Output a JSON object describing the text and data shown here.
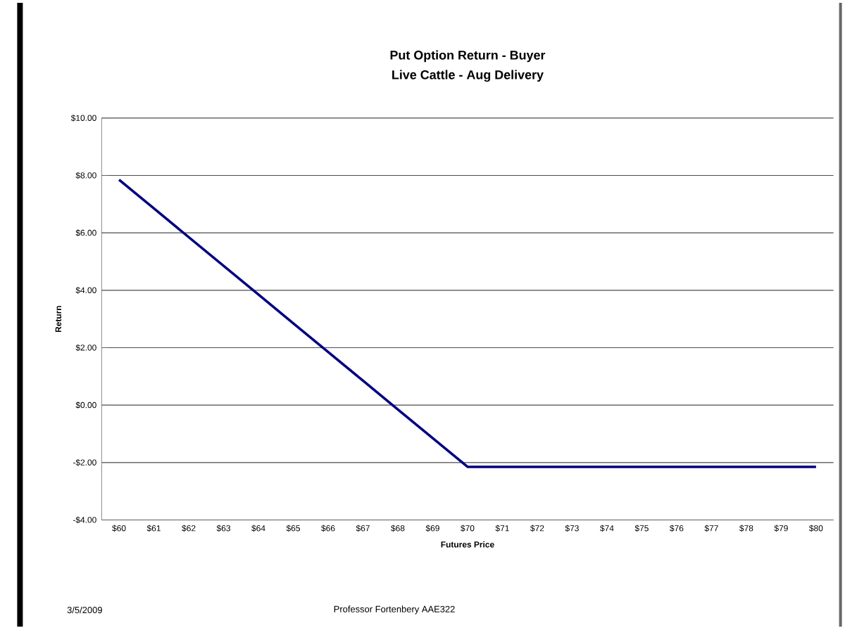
{
  "chart_data": {
    "type": "line",
    "title": "Put Option Return - Buyer",
    "subtitle": "Live Cattle - Aug Delivery",
    "xlabel": "Futures Price",
    "ylabel": "Return",
    "categories": [
      "$60",
      "$61",
      "$62",
      "$63",
      "$64",
      "$65",
      "$66",
      "$67",
      "$68",
      "$69",
      "$70",
      "$71",
      "$72",
      "$73",
      "$74",
      "$75",
      "$76",
      "$77",
      "$78",
      "$79",
      "$80"
    ],
    "series": [
      {
        "color": "#000080",
        "values": [
          7.85,
          6.85,
          5.85,
          4.85,
          3.85,
          2.85,
          1.85,
          0.85,
          -0.15,
          -1.15,
          -2.15,
          -2.15,
          -2.15,
          -2.15,
          -2.15,
          -2.15,
          -2.15,
          -2.15,
          -2.15,
          -2.15,
          -2.15
        ]
      }
    ],
    "ylim": [
      -4,
      10
    ],
    "yticks": [
      {
        "value": -4,
        "label": "-$4.00"
      },
      {
        "value": -2,
        "label": "-$2.00"
      },
      {
        "value": 0,
        "label": "$0.00"
      },
      {
        "value": 2,
        "label": "$2.00"
      },
      {
        "value": 4,
        "label": "$4.00"
      },
      {
        "value": 6,
        "label": "$6.00"
      },
      {
        "value": 8,
        "label": "$8.00"
      },
      {
        "value": 10,
        "label": "$10.00"
      }
    ],
    "grid": "y",
    "marker": "none",
    "line_style": "solid",
    "annotations": [
      "3/5/2009",
      "Professor Fortenbery  AAE322"
    ]
  }
}
